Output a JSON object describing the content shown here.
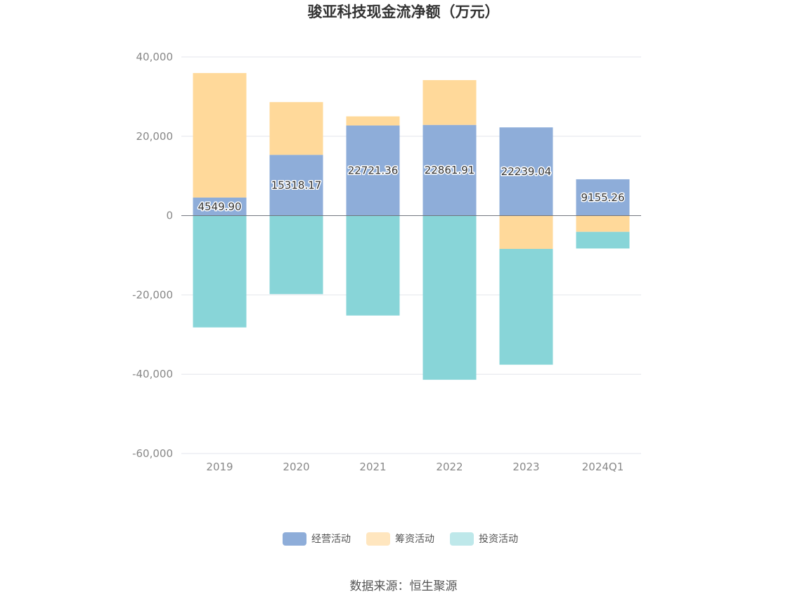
{
  "chart_data": {
    "type": "bar",
    "stacked": true,
    "title": "骏亚科技现金流净额（万元）",
    "categories": [
      "2019",
      "2020",
      "2021",
      "2022",
      "2023",
      "2024Q1"
    ],
    "series": [
      {
        "name": "经营活动",
        "color": "#8EADD9",
        "values": [
          4549.9,
          15318.17,
          22721.36,
          22861.91,
          22239.04,
          9155.26
        ]
      },
      {
        "name": "筹资活动",
        "color": "#FFD99A",
        "values": [
          31400,
          13300,
          2300,
          11300,
          -8400,
          -4100
        ]
      },
      {
        "name": "投资活动",
        "color": "#88D5D8",
        "values": [
          -28200,
          -19800,
          -25200,
          -41400,
          -29200,
          -4200
        ]
      }
    ],
    "data_labels": [
      "4549.90",
      "15318.17",
      "22721.36",
      "22861.91",
      "22239.04",
      "9155.26"
    ],
    "y_ticks": [
      40000,
      20000,
      0,
      -20000,
      -40000,
      -60000
    ],
    "y_tick_labels": [
      "40,000",
      "20,000",
      "0",
      "-20,000",
      "-40,000",
      "-60,000"
    ],
    "ylim": [
      -60000,
      40000
    ],
    "grid": true,
    "legend_position": "bottom"
  },
  "legend": {
    "items": [
      {
        "label": "经营活动",
        "color": "#8EADD9"
      },
      {
        "label": "筹资活动",
        "color": "#FFE6BF"
      },
      {
        "label": "投资活动",
        "color": "#BEE8EA"
      }
    ]
  },
  "source_text": "数据来源：恒生聚源"
}
